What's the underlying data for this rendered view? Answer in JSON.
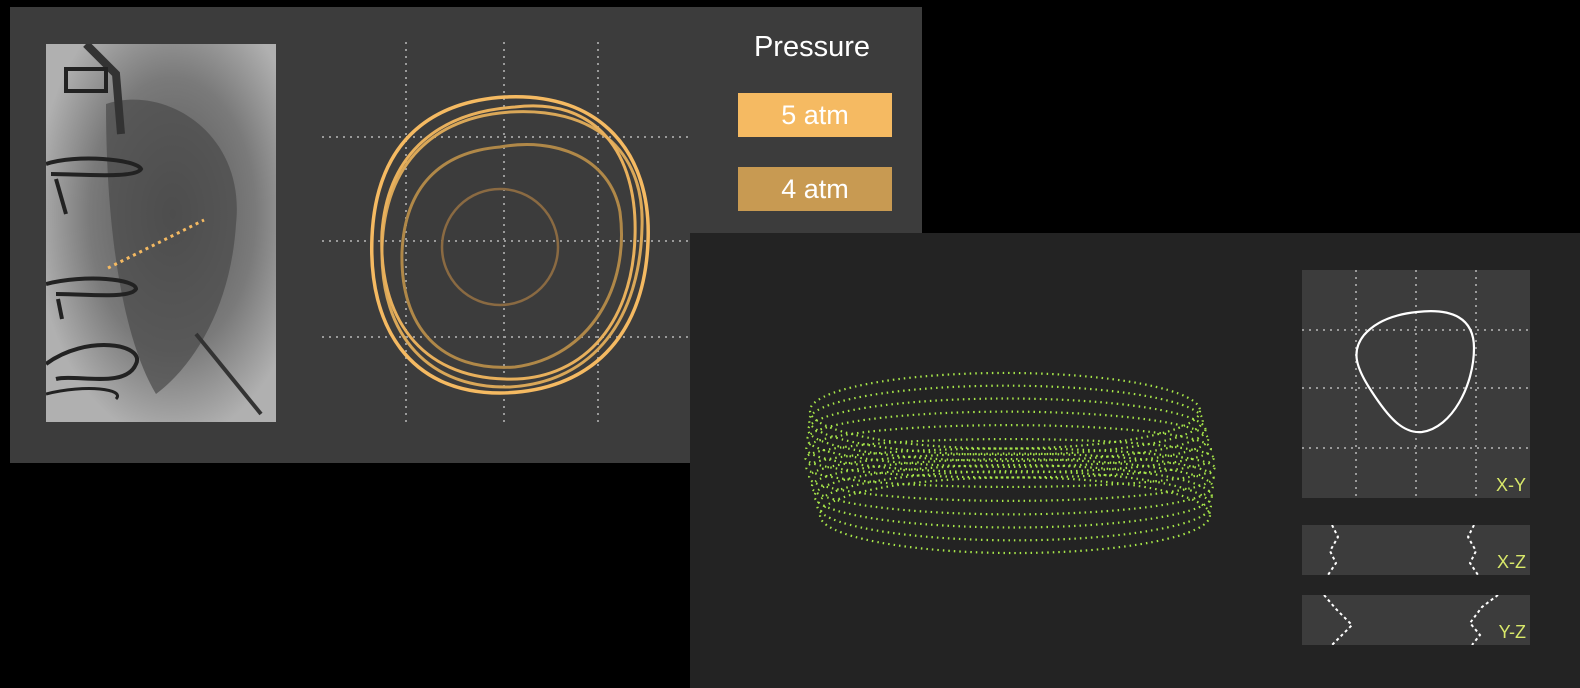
{
  "pressure": {
    "title": "Pressure",
    "levels": [
      {
        "label": "5 atm",
        "color": "#f5ba62"
      },
      {
        "label": "4 atm",
        "color": "#c89a52"
      }
    ]
  },
  "views": {
    "xy": "X-Y",
    "xz": "X-Z",
    "yz": "Y-Z"
  },
  "colors": {
    "contour_bright": "#f5ba62",
    "contour_dim": "#c89a52",
    "point_cloud": "#a8e84a",
    "view_trace": "#ffffff",
    "view_label": "#d8e86a",
    "grid": "#9a9a9a"
  }
}
